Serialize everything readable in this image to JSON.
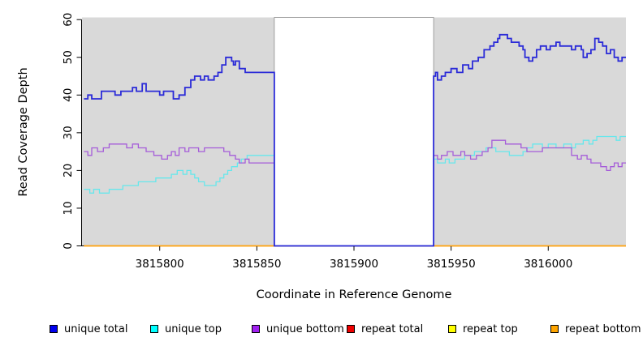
{
  "chart_data": {
    "type": "line",
    "subtype": "step",
    "title": "",
    "xlabel": "Coordinate in Reference Genome",
    "ylabel": "Read Coverage Depth",
    "xlim": [
      3815760,
      3816040
    ],
    "ylim": [
      0,
      60
    ],
    "x_ticks": [
      3815800,
      3815850,
      3815900,
      3815950,
      3816000
    ],
    "y_ticks": [
      0,
      10,
      20,
      30,
      40,
      50,
      60
    ],
    "grid": false,
    "legend_position": "bottom",
    "colors": {
      "plot_bg": "#d9d9d9",
      "axis": "#000000"
    },
    "highlight_region": {
      "x0": 3815859,
      "x1": 3815941,
      "color": "#ffffff",
      "border": "#8c8c8c"
    },
    "series": [
      {
        "name": "unique total",
        "group": "unique",
        "swatch_color": "#0000ee",
        "line_color": "#2b2bd8",
        "line_width": 1.8,
        "points": [
          [
            3815761,
            39
          ],
          [
            3815763,
            40
          ],
          [
            3815765,
            39
          ],
          [
            3815770,
            41
          ],
          [
            3815777,
            40
          ],
          [
            3815780,
            41
          ],
          [
            3815786,
            42
          ],
          [
            3815788,
            41
          ],
          [
            3815791,
            43
          ],
          [
            3815793,
            41
          ],
          [
            3815800,
            40
          ],
          [
            3815802,
            41
          ],
          [
            3815807,
            39
          ],
          [
            3815810,
            40
          ],
          [
            3815813,
            42
          ],
          [
            3815816,
            44
          ],
          [
            3815818,
            45
          ],
          [
            3815821,
            44
          ],
          [
            3815823,
            45
          ],
          [
            3815825,
            44
          ],
          [
            3815828,
            45
          ],
          [
            3815830,
            46
          ],
          [
            3815832,
            48
          ],
          [
            3815834,
            50
          ],
          [
            3815837,
            49
          ],
          [
            3815838,
            48
          ],
          [
            3815839,
            49
          ],
          [
            3815841,
            47
          ],
          [
            3815844,
            46
          ],
          [
            3815859,
            0
          ],
          [
            3815941,
            45
          ],
          [
            3815942,
            46
          ],
          [
            3815943,
            44
          ],
          [
            3815945,
            45
          ],
          [
            3815947,
            46
          ],
          [
            3815950,
            47
          ],
          [
            3815953,
            46
          ],
          [
            3815956,
            48
          ],
          [
            3815959,
            47
          ],
          [
            3815961,
            49
          ],
          [
            3815964,
            50
          ],
          [
            3815967,
            52
          ],
          [
            3815970,
            53
          ],
          [
            3815972,
            54
          ],
          [
            3815974,
            55
          ],
          [
            3815975,
            56
          ],
          [
            3815979,
            55
          ],
          [
            3815981,
            54
          ],
          [
            3815985,
            53
          ],
          [
            3815987,
            52
          ],
          [
            3815988,
            50
          ],
          [
            3815990,
            49
          ],
          [
            3815992,
            50
          ],
          [
            3815994,
            52
          ],
          [
            3815996,
            53
          ],
          [
            3815999,
            52
          ],
          [
            3816001,
            53
          ],
          [
            3816004,
            54
          ],
          [
            3816006,
            53
          ],
          [
            3816010,
            53
          ],
          [
            3816012,
            52
          ],
          [
            3816014,
            53
          ],
          [
            3816017,
            52
          ],
          [
            3816018,
            50
          ],
          [
            3816020,
            51
          ],
          [
            3816022,
            52
          ],
          [
            3816024,
            55
          ],
          [
            3816026,
            54
          ],
          [
            3816028,
            53
          ],
          [
            3816030,
            51
          ],
          [
            3816032,
            52
          ],
          [
            3816034,
            50
          ],
          [
            3816036,
            49
          ],
          [
            3816038,
            50
          ]
        ]
      },
      {
        "name": "unique top",
        "group": "unique",
        "swatch_color": "#00ffff",
        "line_color": "#66e7ec",
        "line_width": 1.3,
        "points": [
          [
            3815761,
            15
          ],
          [
            3815764,
            14
          ],
          [
            3815766,
            15
          ],
          [
            3815769,
            14
          ],
          [
            3815774,
            15
          ],
          [
            3815781,
            16
          ],
          [
            3815789,
            17
          ],
          [
            3815798,
            18
          ],
          [
            3815806,
            19
          ],
          [
            3815809,
            20
          ],
          [
            3815812,
            19
          ],
          [
            3815814,
            20
          ],
          [
            3815816,
            19
          ],
          [
            3815818,
            18
          ],
          [
            3815820,
            17
          ],
          [
            3815823,
            16
          ],
          [
            3815829,
            17
          ],
          [
            3815831,
            18
          ],
          [
            3815833,
            19
          ],
          [
            3815835,
            20
          ],
          [
            3815837,
            21
          ],
          [
            3815840,
            22
          ],
          [
            3815842,
            23
          ],
          [
            3815845,
            24
          ],
          [
            3815859,
            0
          ],
          [
            3815941,
            23
          ],
          [
            3815943,
            22
          ],
          [
            3815947,
            23
          ],
          [
            3815949,
            22
          ],
          [
            3815952,
            23
          ],
          [
            3815957,
            24
          ],
          [
            3815962,
            25
          ],
          [
            3815968,
            26
          ],
          [
            3815973,
            25
          ],
          [
            3815980,
            24
          ],
          [
            3815987,
            25
          ],
          [
            3815989,
            26
          ],
          [
            3815992,
            27
          ],
          [
            3815997,
            26
          ],
          [
            3816000,
            27
          ],
          [
            3816004,
            26
          ],
          [
            3816008,
            27
          ],
          [
            3816012,
            26
          ],
          [
            3816014,
            27
          ],
          [
            3816018,
            28
          ],
          [
            3816021,
            27
          ],
          [
            3816023,
            28
          ],
          [
            3816025,
            29
          ],
          [
            3816032,
            29
          ],
          [
            3816035,
            28
          ],
          [
            3816037,
            29
          ]
        ]
      },
      {
        "name": "unique bottom",
        "group": "unique",
        "swatch_color": "#a020f0",
        "line_color": "#a55cd9",
        "line_width": 1.3,
        "points": [
          [
            3815761,
            25
          ],
          [
            3815763,
            24
          ],
          [
            3815765,
            26
          ],
          [
            3815768,
            25
          ],
          [
            3815771,
            26
          ],
          [
            3815774,
            27
          ],
          [
            3815783,
            26
          ],
          [
            3815786,
            27
          ],
          [
            3815789,
            26
          ],
          [
            3815793,
            25
          ],
          [
            3815797,
            24
          ],
          [
            3815801,
            23
          ],
          [
            3815804,
            24
          ],
          [
            3815806,
            25
          ],
          [
            3815808,
            24
          ],
          [
            3815810,
            26
          ],
          [
            3815813,
            25
          ],
          [
            3815815,
            26
          ],
          [
            3815820,
            25
          ],
          [
            3815823,
            26
          ],
          [
            3815833,
            25
          ],
          [
            3815836,
            24
          ],
          [
            3815839,
            23
          ],
          [
            3815841,
            22
          ],
          [
            3815844,
            23
          ],
          [
            3815846,
            22
          ],
          [
            3815859,
            0
          ],
          [
            3815941,
            24
          ],
          [
            3815943,
            23
          ],
          [
            3815945,
            24
          ],
          [
            3815948,
            25
          ],
          [
            3815951,
            24
          ],
          [
            3815955,
            25
          ],
          [
            3815957,
            24
          ],
          [
            3815960,
            23
          ],
          [
            3815963,
            24
          ],
          [
            3815966,
            25
          ],
          [
            3815969,
            26
          ],
          [
            3815971,
            28
          ],
          [
            3815978,
            27
          ],
          [
            3815986,
            26
          ],
          [
            3815989,
            25
          ],
          [
            3815997,
            26
          ],
          [
            3816007,
            26
          ],
          [
            3816012,
            24
          ],
          [
            3816015,
            23
          ],
          [
            3816017,
            24
          ],
          [
            3816020,
            23
          ],
          [
            3816022,
            22
          ],
          [
            3816027,
            21
          ],
          [
            3816030,
            20
          ],
          [
            3816032,
            21
          ],
          [
            3816034,
            22
          ],
          [
            3816036,
            21
          ],
          [
            3816038,
            22
          ]
        ]
      },
      {
        "name": "repeat total",
        "group": "repeat",
        "swatch_color": "#ee0000",
        "line_color": "#dd3333",
        "line_width": 1.3,
        "points": [
          [
            3815761,
            0
          ]
        ]
      },
      {
        "name": "repeat top",
        "group": "repeat",
        "swatch_color": "#ffff00",
        "line_color": "#eeee33",
        "line_width": 1.3,
        "points": [
          [
            3815761,
            0
          ]
        ]
      },
      {
        "name": "repeat bottom",
        "group": "repeat",
        "swatch_color": "#ffa500",
        "line_color": "#ffa513",
        "line_width": 1.8,
        "points": [
          [
            3815761,
            0
          ]
        ]
      }
    ],
    "legend_item_x": [
      61,
      185,
      310,
      427,
      552,
      678
    ]
  }
}
